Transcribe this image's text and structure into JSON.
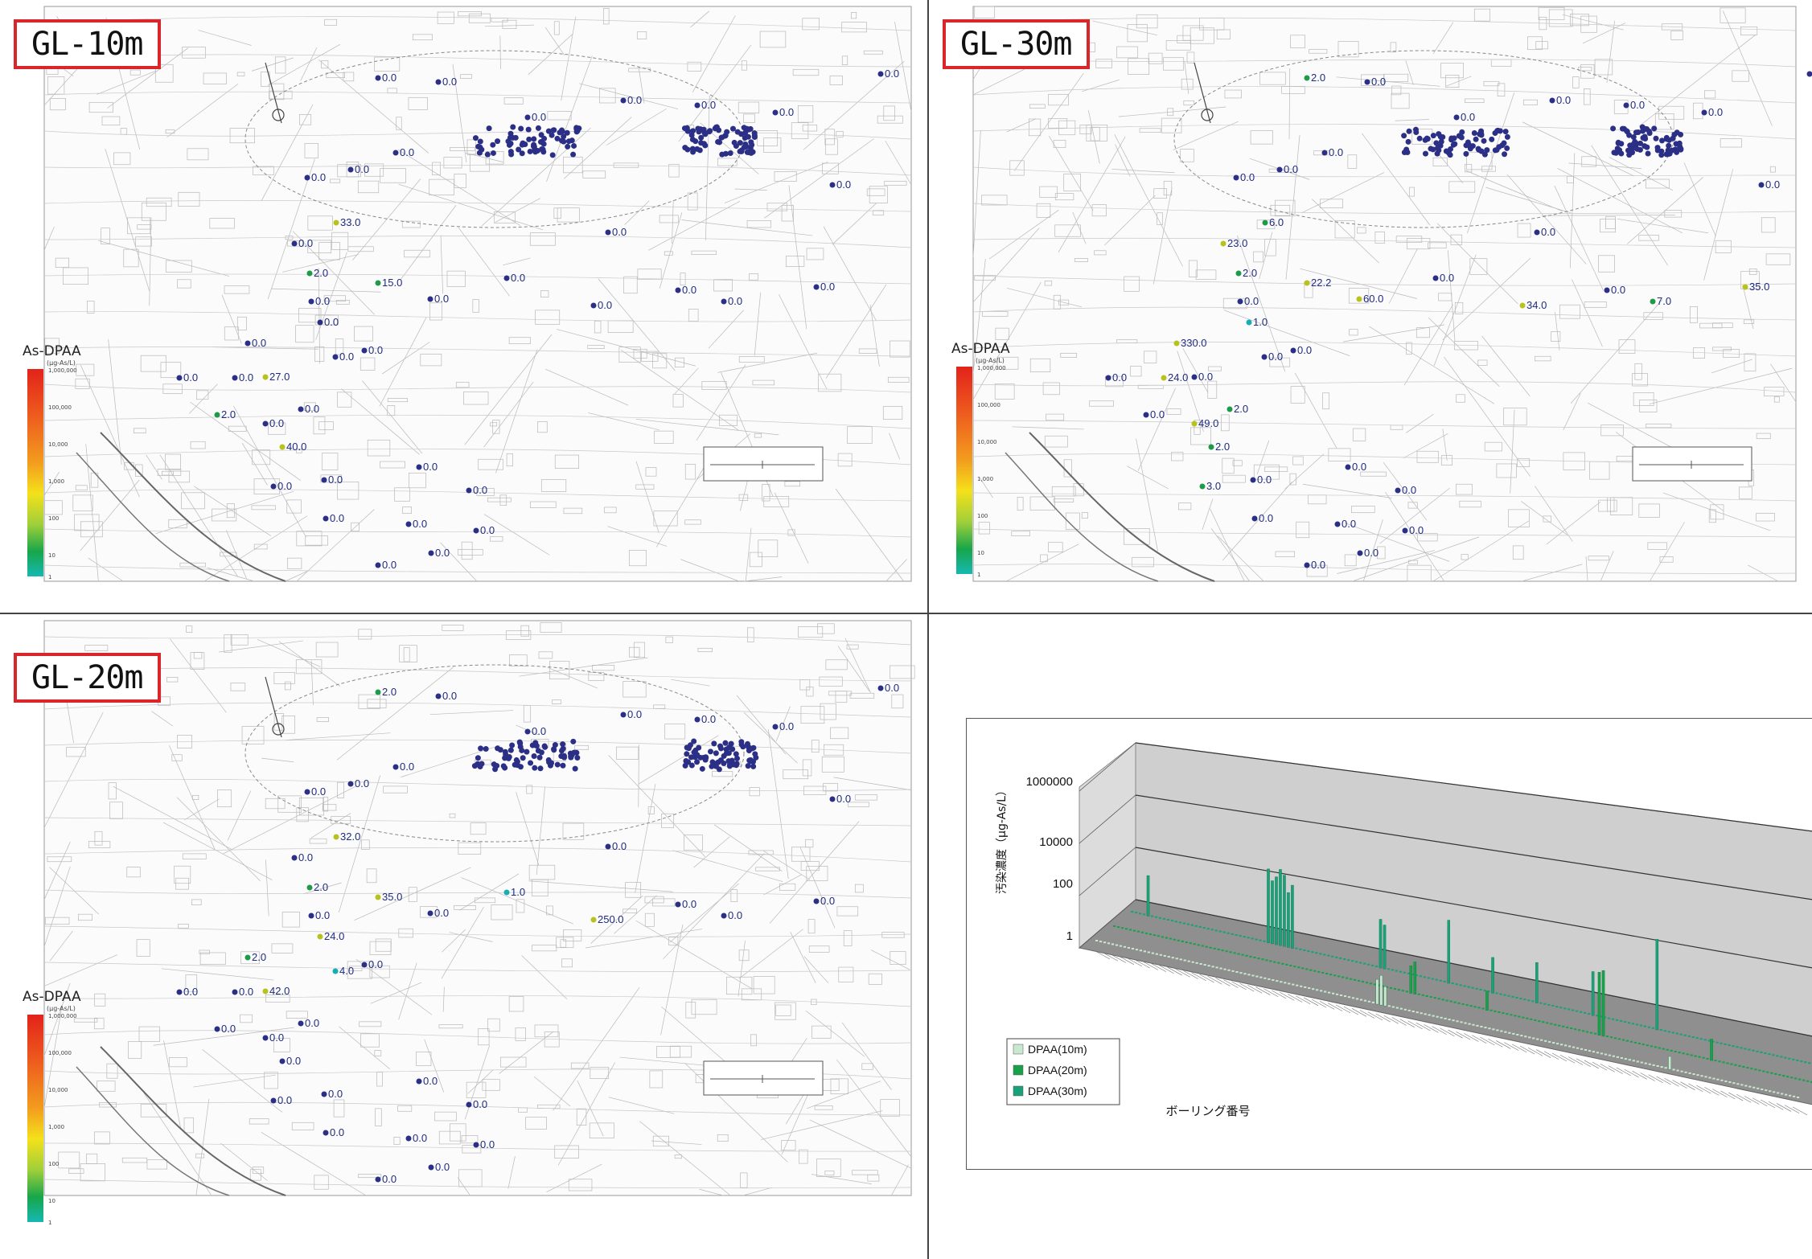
{
  "panels": {
    "gl10": {
      "label": "GL-10m",
      "legend": {
        "title": "As-DPAA",
        "unit": "(μg-As/L)",
        "ticks": [
          "1,000,000",
          "100,000",
          "10,000",
          "1,000",
          "100",
          "10",
          "1"
        ]
      },
      "points": [
        {
          "v": "0.0",
          "c": "navy"
        },
        {
          "v": "0.0",
          "c": "navy"
        },
        {
          "v": "0.0",
          "c": "navy"
        },
        {
          "v": "0.0",
          "c": "navy"
        },
        {
          "v": "0.0",
          "c": "navy"
        },
        {
          "v": "0.0",
          "c": "navy"
        },
        {
          "v": "0.0",
          "c": "navy"
        },
        {
          "v": "0.0",
          "c": "navy"
        },
        {
          "v": "0.0",
          "c": "navy"
        },
        {
          "v": "0.0",
          "c": "navy"
        },
        {
          "v": "33.0",
          "c": "yellow"
        },
        {
          "v": "0.0",
          "c": "navy"
        },
        {
          "v": "2.0",
          "c": "green"
        },
        {
          "v": "15.0",
          "c": "green"
        },
        {
          "v": "0.0",
          "c": "navy"
        },
        {
          "v": "0.0",
          "c": "navy"
        },
        {
          "v": "0.0",
          "c": "navy"
        },
        {
          "v": "0.0",
          "c": "navy"
        },
        {
          "v": "0.0",
          "c": "navy"
        },
        {
          "v": "0.0",
          "c": "navy"
        },
        {
          "v": "0.0",
          "c": "navy"
        },
        {
          "v": "0.0",
          "c": "navy"
        },
        {
          "v": "0.0",
          "c": "navy"
        },
        {
          "v": "0.0",
          "c": "navy"
        },
        {
          "v": "0.0",
          "c": "navy"
        },
        {
          "v": "27.0",
          "c": "yellow"
        },
        {
          "v": "2.0",
          "c": "green"
        },
        {
          "v": "0.0",
          "c": "navy"
        },
        {
          "v": "0.0",
          "c": "navy"
        },
        {
          "v": "40.0",
          "c": "yellow"
        },
        {
          "v": "0.0",
          "c": "navy"
        },
        {
          "v": "0.0",
          "c": "navy"
        },
        {
          "v": "0.0",
          "c": "navy"
        },
        {
          "v": "0.0",
          "c": "navy"
        },
        {
          "v": "0.0",
          "c": "navy"
        },
        {
          "v": "0.0",
          "c": "navy"
        },
        {
          "v": "0.0",
          "c": "navy"
        },
        {
          "v": "0.0",
          "c": "navy"
        },
        {
          "v": "0.0",
          "c": "navy"
        },
        {
          "v": "0.0",
          "c": "navy"
        },
        {
          "v": "0.0",
          "c": "navy"
        },
        {
          "v": "0.0",
          "c": "navy"
        },
        {
          "v": "0.0",
          "c": "navy"
        }
      ]
    },
    "gl30": {
      "label": "GL-30m",
      "legend": {
        "title": "As-DPAA",
        "unit": "(μg-As/L)",
        "ticks": [
          "1,000,000",
          "100,000",
          "10,000",
          "1,000",
          "100",
          "10",
          "1"
        ]
      },
      "points": [
        {
          "v": "2.0",
          "c": "green"
        },
        {
          "v": "0.0",
          "c": "navy"
        },
        {
          "v": "0.0",
          "c": "navy"
        },
        {
          "v": "0.0",
          "c": "navy"
        },
        {
          "v": "0.0",
          "c": "navy"
        },
        {
          "v": "0.0",
          "c": "navy"
        },
        {
          "v": "0.0",
          "c": "navy"
        },
        {
          "v": "0.0",
          "c": "navy"
        },
        {
          "v": "0.0",
          "c": "navy"
        },
        {
          "v": "0.0",
          "c": "navy"
        },
        {
          "v": "6.0",
          "c": "green"
        },
        {
          "v": "23.0",
          "c": "yellow"
        },
        {
          "v": "2.0",
          "c": "green"
        },
        {
          "v": "22.2",
          "c": "yellow"
        },
        {
          "v": "60.0",
          "c": "yellow"
        },
        {
          "v": "0.0",
          "c": "navy"
        },
        {
          "v": "34.0",
          "c": "yellow"
        },
        {
          "v": "0.0",
          "c": "navy"
        },
        {
          "v": "7.0",
          "c": "green"
        },
        {
          "v": "35.0",
          "c": "yellow"
        },
        {
          "v": "0.0",
          "c": "navy"
        },
        {
          "v": "1.0",
          "c": "teal"
        },
        {
          "v": "330.0",
          "c": "yellow"
        },
        {
          "v": "0.0",
          "c": "navy"
        },
        {
          "v": "0.0",
          "c": "navy"
        },
        {
          "v": "0.0",
          "c": "navy"
        },
        {
          "v": "0.0",
          "c": "navy"
        },
        {
          "v": "0.0",
          "c": "navy"
        },
        {
          "v": "24.0",
          "c": "yellow"
        },
        {
          "v": "2.0",
          "c": "green"
        },
        {
          "v": "2.0",
          "c": "green"
        },
        {
          "v": "49.0",
          "c": "yellow"
        },
        {
          "v": "3.0",
          "c": "green"
        },
        {
          "v": "0.0",
          "c": "navy"
        },
        {
          "v": "0.0",
          "c": "navy"
        },
        {
          "v": "0.0",
          "c": "navy"
        },
        {
          "v": "0.0",
          "c": "navy"
        },
        {
          "v": "0.0",
          "c": "navy"
        },
        {
          "v": "0.0",
          "c": "navy"
        },
        {
          "v": "0.0",
          "c": "navy"
        },
        {
          "v": "0.0",
          "c": "navy"
        },
        {
          "v": "0.0",
          "c": "navy"
        },
        {
          "v": "0.0",
          "c": "navy"
        }
      ]
    },
    "gl20": {
      "label": "GL-20m",
      "legend": {
        "title": "As-DPAA",
        "unit": "(μg-As/L)",
        "ticks": [
          "1,000,000",
          "100,000",
          "10,000",
          "1,000",
          "100",
          "10",
          "1"
        ]
      },
      "points": [
        {
          "v": "2.0",
          "c": "green"
        },
        {
          "v": "0.0",
          "c": "navy"
        },
        {
          "v": "0.0",
          "c": "navy"
        },
        {
          "v": "0.0",
          "c": "navy"
        },
        {
          "v": "0.0",
          "c": "navy"
        },
        {
          "v": "0.0",
          "c": "navy"
        },
        {
          "v": "0.0",
          "c": "navy"
        },
        {
          "v": "0.0",
          "c": "navy"
        },
        {
          "v": "0.0",
          "c": "navy"
        },
        {
          "v": "0.0",
          "c": "navy"
        },
        {
          "v": "32.0",
          "c": "yellow"
        },
        {
          "v": "0.0",
          "c": "navy"
        },
        {
          "v": "2.0",
          "c": "green"
        },
        {
          "v": "35.0",
          "c": "yellow"
        },
        {
          "v": "0.0",
          "c": "navy"
        },
        {
          "v": "1.0",
          "c": "teal"
        },
        {
          "v": "250.0",
          "c": "yellow"
        },
        {
          "v": "0.0",
          "c": "navy"
        },
        {
          "v": "0.0",
          "c": "navy"
        },
        {
          "v": "0.0",
          "c": "navy"
        },
        {
          "v": "0.0",
          "c": "navy"
        },
        {
          "v": "24.0",
          "c": "yellow"
        },
        {
          "v": "2.0",
          "c": "green"
        },
        {
          "v": "4.0",
          "c": "teal"
        },
        {
          "v": "0.0",
          "c": "navy"
        },
        {
          "v": "42.0",
          "c": "yellow"
        },
        {
          "v": "0.0",
          "c": "navy"
        },
        {
          "v": "0.0",
          "c": "navy"
        },
        {
          "v": "0.0",
          "c": "navy"
        },
        {
          "v": "0.0",
          "c": "navy"
        },
        {
          "v": "0.0",
          "c": "navy"
        },
        {
          "v": "0.0",
          "c": "navy"
        },
        {
          "v": "0.0",
          "c": "navy"
        },
        {
          "v": "0.0",
          "c": "navy"
        },
        {
          "v": "0.0",
          "c": "navy"
        },
        {
          "v": "0.0",
          "c": "navy"
        },
        {
          "v": "0.0",
          "c": "navy"
        },
        {
          "v": "0.0",
          "c": "navy"
        },
        {
          "v": "0.0",
          "c": "navy"
        },
        {
          "v": "0.0",
          "c": "navy"
        },
        {
          "v": "0.0",
          "c": "navy"
        },
        {
          "v": "0.0",
          "c": "navy"
        },
        {
          "v": "0.0",
          "c": "navy"
        }
      ]
    }
  },
  "marker_colors": {
    "navy": "#2b2f86",
    "green": "#1f9a4a",
    "yellow": "#b7c21e",
    "teal": "#17aeb0"
  },
  "chart_data": {
    "type": "bar",
    "ylabel": "汚染濃度（μg-As/L）",
    "xlabel": "ボーリング番号",
    "y_ticks": [
      "1000000",
      "10000",
      "100",
      "1"
    ],
    "scale": "log",
    "ylim": [
      1,
      1000000
    ],
    "legend_position": "bottom-left",
    "series": [
      {
        "name": "DPAA(10m)",
        "color": "#c9e8cf",
        "values": [
          1,
          1,
          1,
          1,
          1,
          1,
          1,
          1,
          1,
          1,
          1,
          1,
          1,
          1,
          1,
          1,
          1,
          1,
          1,
          1,
          1,
          1,
          1,
          1,
          1,
          1,
          1,
          1,
          1,
          1,
          1,
          1,
          1,
          1,
          1,
          1,
          1,
          1,
          1,
          1,
          1,
          1,
          1,
          1,
          1,
          1,
          1,
          1,
          1,
          1,
          1,
          1,
          1,
          1,
          1,
          1,
          1,
          1,
          1,
          1,
          1,
          1,
          1,
          1,
          1,
          1,
          1,
          1,
          1,
          1,
          8,
          12,
          5,
          1,
          1,
          1,
          1,
          1,
          1,
          1,
          1,
          1,
          1,
          1,
          1,
          1,
          1,
          1,
          1,
          1,
          1,
          1,
          1,
          1,
          1,
          1,
          1,
          1,
          1,
          1,
          1,
          1,
          1,
          1,
          1,
          1,
          1,
          1,
          1,
          1,
          1,
          1,
          1,
          1,
          1,
          1,
          1,
          1,
          1,
          1,
          1,
          1,
          1,
          1,
          1,
          1,
          1,
          1,
          1,
          1,
          1,
          1,
          1,
          1,
          1,
          1,
          1,
          1,
          1,
          1,
          1,
          1,
          1,
          3,
          1,
          1,
          1,
          1,
          1,
          1,
          1,
          1,
          1,
          1,
          1,
          1,
          1,
          1,
          1,
          1,
          1,
          1,
          1,
          1,
          1,
          1,
          1,
          1,
          1,
          1,
          1,
          1,
          1,
          1,
          1,
          1
        ]
      },
      {
        "name": "DPAA(20m)",
        "color": "#18a04b",
        "values": [
          1,
          1,
          1,
          1,
          1,
          1,
          1,
          1,
          1,
          1,
          1,
          1,
          1,
          1,
          1,
          1,
          1,
          1,
          1,
          1,
          1,
          1,
          1,
          1,
          1,
          1,
          1,
          1,
          1,
          1,
          1,
          1,
          1,
          1,
          1,
          1,
          1,
          1,
          1,
          1,
          1,
          1,
          1,
          1,
          1,
          1,
          1,
          1,
          1,
          1,
          1,
          1,
          1,
          1,
          1,
          1,
          1,
          1,
          1,
          1,
          1,
          1,
          1,
          1,
          1,
          1,
          1,
          1,
          1,
          1,
          1,
          1,
          1,
          1,
          10,
          15,
          1,
          1,
          1,
          1,
          1,
          1,
          1,
          1,
          1,
          1,
          1,
          1,
          1,
          1,
          1,
          1,
          1,
          5,
          1,
          1,
          1,
          1,
          1,
          1,
          1,
          1,
          1,
          1,
          1,
          1,
          1,
          1,
          1,
          1,
          1,
          1,
          1,
          1,
          1,
          1,
          1,
          1,
          1,
          1,
          1,
          200,
          250,
          1,
          1,
          1,
          1,
          1,
          1,
          1,
          1,
          1,
          1,
          1,
          1,
          1,
          1,
          1,
          1,
          1,
          1,
          1,
          1,
          1,
          1,
          1,
          1,
          1,
          1,
          6,
          1,
          1,
          1,
          1,
          1,
          1,
          1,
          1,
          1,
          1,
          1,
          1,
          1,
          1,
          1,
          1,
          1,
          1,
          1,
          1,
          1,
          1,
          1,
          1,
          1,
          1,
          1,
          1
        ]
      },
      {
        "name": "DPAA(30m)",
        "color": "#1aa07a",
        "values": [
          1,
          1,
          1,
          1,
          30,
          1,
          1,
          1,
          1,
          1,
          1,
          1,
          1,
          1,
          1,
          1,
          1,
          1,
          1,
          1,
          1,
          1,
          1,
          1,
          1,
          1,
          1,
          1,
          1,
          1,
          1,
          1,
          1,
          1,
          500,
          200,
          300,
          600,
          400,
          100,
          200,
          1,
          1,
          1,
          1,
          1,
          1,
          1,
          1,
          1,
          1,
          1,
          1,
          1,
          1,
          1,
          1,
          1,
          1,
          1,
          1,
          1,
          60,
          40,
          1,
          1,
          1,
          1,
          1,
          1,
          1,
          1,
          1,
          1,
          1,
          1,
          1,
          1,
          1,
          200,
          1,
          1,
          1,
          1,
          1,
          1,
          1,
          1,
          1,
          1,
          20,
          1,
          1,
          1,
          1,
          1,
          1,
          1,
          1,
          1,
          1,
          30,
          1,
          1,
          1,
          1,
          1,
          1,
          1,
          1,
          1,
          1,
          1,
          1,
          1,
          40,
          1,
          1,
          1,
          1,
          1,
          1,
          1,
          1,
          1,
          1,
          1,
          1,
          1,
          1,
          1,
          2000,
          1,
          1,
          1,
          1,
          1,
          1,
          1,
          1,
          1,
          1,
          1,
          1,
          1,
          1,
          1,
          1,
          1,
          1,
          1,
          1,
          1,
          1,
          1,
          1,
          1,
          1,
          1,
          1,
          1,
          1,
          1,
          1,
          1,
          1,
          1,
          1,
          1,
          1,
          1,
          1,
          1,
          1,
          1,
          1,
          1,
          1,
          1,
          1,
          1,
          1,
          1,
          1,
          1,
          1,
          1,
          1,
          1,
          1
        ]
      }
    ]
  }
}
